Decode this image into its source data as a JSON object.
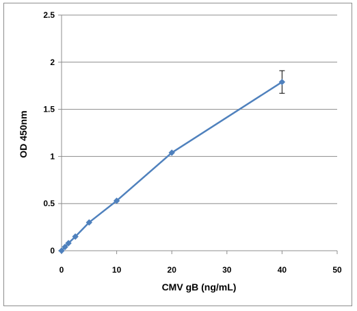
{
  "chart_data": {
    "type": "line",
    "title": "",
    "xlabel": "CMV gB (ng/mL)",
    "ylabel": "OD 450nm",
    "xlim": [
      0,
      50
    ],
    "ylim": [
      0,
      2.5
    ],
    "x_ticks": [
      "0",
      "10",
      "20",
      "30",
      "40",
      "50"
    ],
    "y_ticks": [
      "0",
      "0.5",
      "1",
      "1.5",
      "2",
      "2.5"
    ],
    "grid": "horizontal",
    "legend": "none",
    "series": [
      {
        "color": "#4f81bd",
        "marker": "diamond",
        "x": [
          0,
          0.625,
          1.25,
          2.5,
          5,
          10,
          20,
          40
        ],
        "y": [
          0.0,
          0.04,
          0.08,
          0.15,
          0.3,
          0.53,
          1.04,
          1.79
        ],
        "error": [
          0,
          0,
          0,
          0,
          0,
          0,
          0,
          0.12
        ]
      }
    ]
  },
  "colors": {
    "series": "#4f81bd",
    "grid": "#8c8c8c",
    "axis": "#8c8c8c",
    "error_bar": "#000000"
  }
}
